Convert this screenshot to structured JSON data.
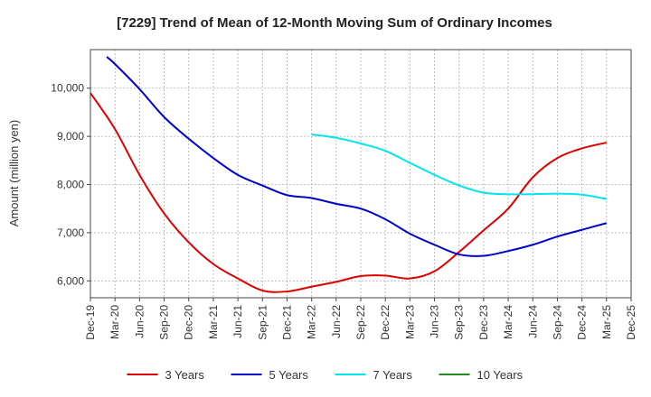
{
  "chart_data": {
    "type": "line",
    "title": "[7229]  Trend of Mean of 12-Month Moving Sum of Ordinary Incomes",
    "xlabel": "",
    "ylabel": "Amount (million yen)",
    "ylim": [
      5650,
      10800
    ],
    "yticks": [
      6000,
      7000,
      8000,
      9000,
      10000
    ],
    "ytick_labels": [
      "6,000",
      "7,000",
      "8,000",
      "9,000",
      "10,000"
    ],
    "xlim": [
      0,
      66
    ],
    "xticks": [
      0,
      3,
      6,
      9,
      12,
      15,
      18,
      21,
      24,
      27,
      30,
      33,
      36,
      39,
      42,
      45,
      48,
      51,
      54,
      57,
      60,
      63,
      66
    ],
    "xtick_labels": [
      "Dec-19",
      "Mar-20",
      "Jun-20",
      "Sep-20",
      "Dec-20",
      "Mar-21",
      "Jun-21",
      "Sep-21",
      "Dec-21",
      "Mar-22",
      "Jun-22",
      "Sep-22",
      "Dec-22",
      "Mar-23",
      "Jun-23",
      "Sep-23",
      "Dec-23",
      "Mar-24",
      "Jun-24",
      "Sep-24",
      "Dec-24",
      "Mar-25",
      "Dec-25"
    ],
    "grid": true,
    "legend_position": "bottom",
    "series": [
      {
        "name": "3 Years",
        "color": "#dd0000",
        "x": [
          0,
          3,
          6,
          9,
          12,
          15,
          18,
          21,
          24,
          27,
          30,
          33,
          36,
          39,
          42,
          45,
          48,
          51,
          54,
          57,
          60,
          63
        ],
        "values": [
          9900,
          9150,
          8200,
          7400,
          6800,
          6350,
          6050,
          5800,
          5780,
          5880,
          5980,
          6100,
          6110,
          6050,
          6200,
          6600,
          7050,
          7500,
          8150,
          8550,
          8750,
          8870
        ]
      },
      {
        "name": "5 Years",
        "color": "#0000cc",
        "x": [
          2,
          3,
          6,
          9,
          12,
          15,
          18,
          21,
          24,
          27,
          30,
          33,
          36,
          39,
          42,
          45,
          48,
          51,
          54,
          57,
          60,
          63
        ],
        "values": [
          10650,
          10500,
          9980,
          9400,
          8950,
          8550,
          8200,
          7980,
          7780,
          7720,
          7600,
          7500,
          7280,
          6980,
          6750,
          6550,
          6520,
          6620,
          6750,
          6920,
          7060,
          7200
        ]
      },
      {
        "name": "7 Years",
        "color": "#00e5ee",
        "x": [
          27,
          30,
          33,
          36,
          39,
          42,
          45,
          48,
          51,
          54,
          57,
          60,
          63
        ],
        "values": [
          9040,
          8970,
          8850,
          8700,
          8450,
          8200,
          7980,
          7830,
          7800,
          7800,
          7810,
          7790,
          7700
        ]
      },
      {
        "name": "10 Years",
        "color": "#228b22",
        "x": [],
        "values": []
      }
    ]
  }
}
